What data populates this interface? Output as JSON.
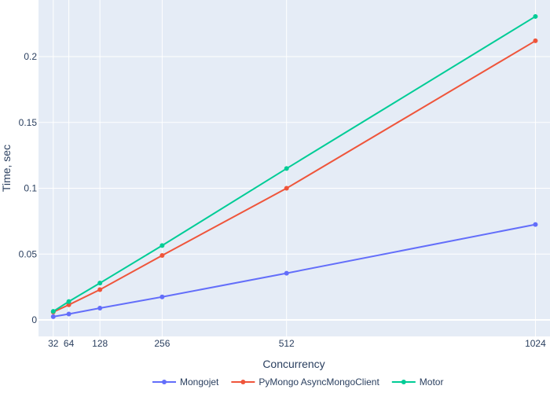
{
  "chart_data": {
    "type": "line",
    "xlabel": "Concurrency",
    "ylabel": "Time, sec",
    "x": [
      32,
      64,
      128,
      256,
      512,
      1024
    ],
    "xticks": [
      32,
      64,
      128,
      256,
      512,
      1024
    ],
    "xtick_labels": [
      "32",
      "64",
      "128",
      "256",
      "512",
      "1024"
    ],
    "xlim": [
      0,
      1054
    ],
    "yticks": [
      0,
      0.05,
      0.1,
      0.15,
      0.2
    ],
    "ytick_labels": [
      "0",
      "0.05",
      "0.1",
      "0.15",
      "0.2"
    ],
    "ylim": [
      -0.0125,
      0.243
    ],
    "grid": true,
    "legend_position": "bottom-center",
    "background_color": "#e5ecf6",
    "series": [
      {
        "name": "Mongojet",
        "color": "#636efa",
        "values": [
          0.0025,
          0.0045,
          0.009,
          0.0175,
          0.0355,
          0.0725
        ]
      },
      {
        "name": "PyMongo AsyncMongoClient",
        "color": "#ef553b",
        "values": [
          0.006,
          0.0115,
          0.023,
          0.049,
          0.1,
          0.212
        ]
      },
      {
        "name": "Motor",
        "color": "#00cc96",
        "values": [
          0.0065,
          0.014,
          0.028,
          0.0565,
          0.115,
          0.2305
        ]
      }
    ]
  }
}
